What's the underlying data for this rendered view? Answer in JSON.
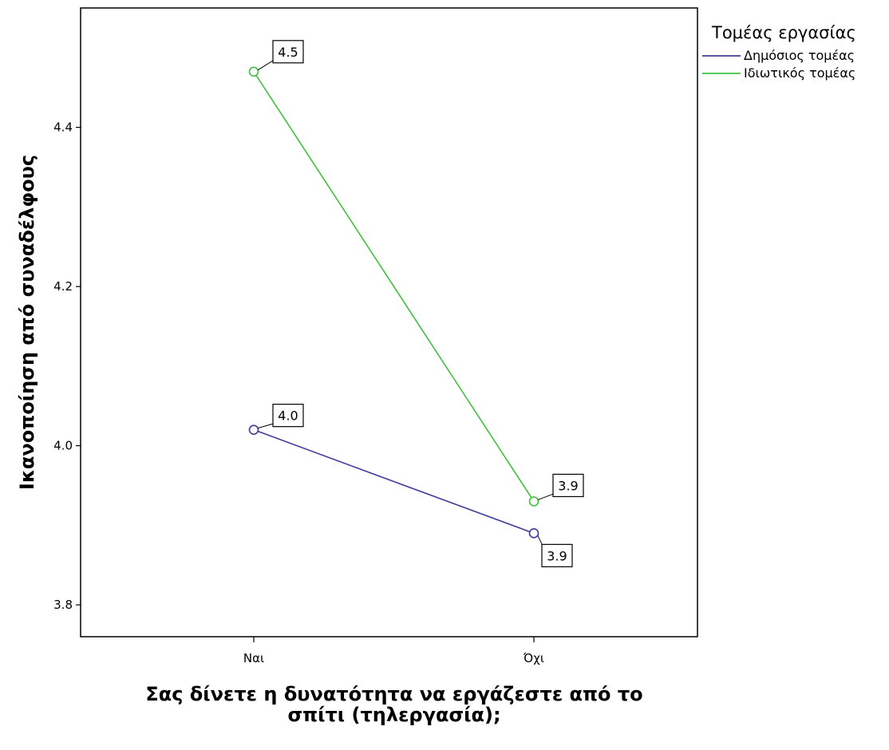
{
  "chart_data": {
    "type": "line",
    "categories": [
      "Ναι",
      "Όχι"
    ],
    "xlabel_lines": [
      "Σας δίνετε η δυνατότητα να εργάζεστε από το",
      "σπίτι (τηλεργασία);"
    ],
    "ylabel": "Ικανοποίηση από συναδέλφους",
    "ylim": [
      3.76,
      4.55
    ],
    "yticks": [
      "3.8",
      "4.0",
      "4.2",
      "4.4"
    ],
    "ytick_values": [
      3.8,
      4.0,
      4.2,
      4.4
    ],
    "grid": false,
    "legend": {
      "title": "Τομέας εργασίας",
      "placement": "right"
    },
    "series": [
      {
        "name": "Δημόσιος τομέας",
        "color": "#3d3d9a",
        "values": [
          4.02,
          3.89
        ],
        "labels": [
          "4.0",
          "3.9"
        ]
      },
      {
        "name": "Ιδιωτικός τομέας",
        "color": "#3fc23f",
        "values": [
          4.47,
          3.93
        ],
        "labels": [
          "4.5",
          "3.9"
        ]
      }
    ]
  }
}
